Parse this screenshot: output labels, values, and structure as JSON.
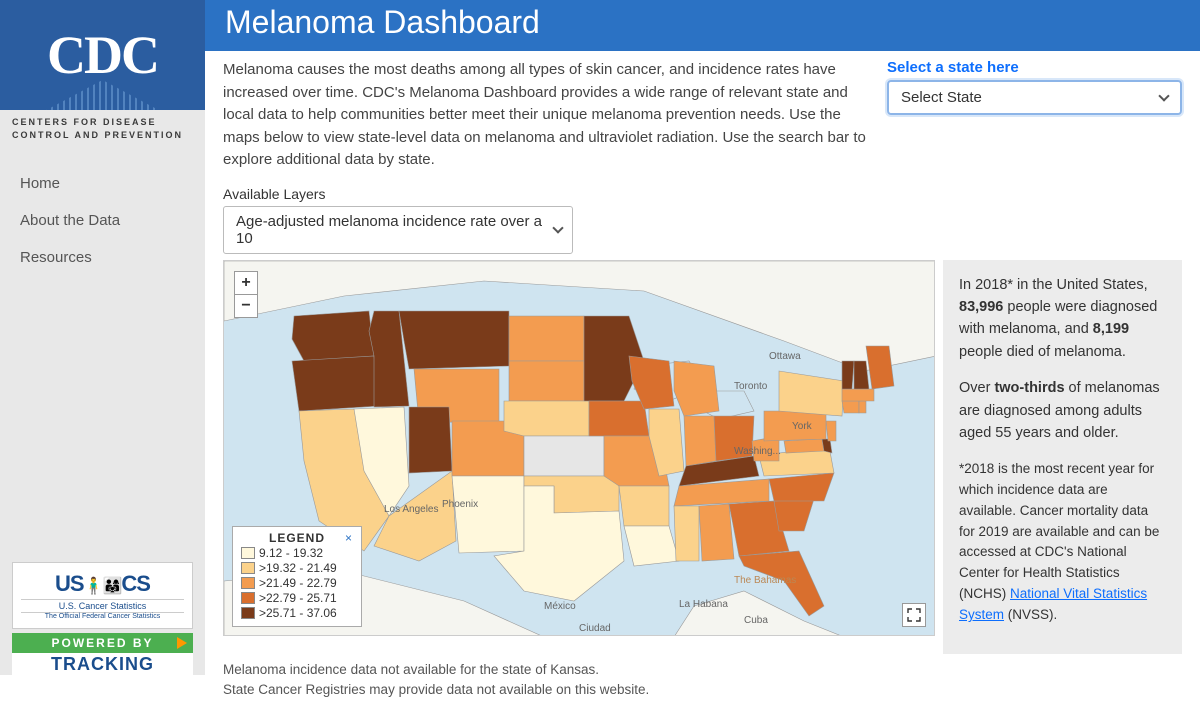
{
  "brand": {
    "abbr": "CDC",
    "line1": "CENTERS FOR DISEASE",
    "line2": "CONTROL AND PREVENTION"
  },
  "nav": {
    "home": "Home",
    "about": "About the Data",
    "resources": "Resources"
  },
  "badges": {
    "uscs_main": "US",
    "uscs_cs": "CS",
    "uscs_sub1": "U.S. Cancer Statistics",
    "uscs_sub2": "The Official Federal Cancer Statistics",
    "track_top": "POWERED BY",
    "track_bot": "TRACKING"
  },
  "title": "Melanoma Dashboard",
  "intro": "Melanoma causes the most deaths among all types of skin cancer, and incidence rates have increased over time. CDC's Melanoma Dashboard provides a wide range of relevant state and local data to help communities better meet their unique melanoma prevention needs. Use the maps below to view state-level data on melanoma and ultraviolet radiation. Use the search bar to explore additional data by state.",
  "state_select": {
    "label": "Select a state here",
    "placeholder": "Select State"
  },
  "layers": {
    "label": "Available Layers",
    "selected": "Age-adjusted melanoma incidence rate over a 10"
  },
  "legend": {
    "title": "LEGEND",
    "close": "×",
    "bins": [
      {
        "color": "#fff8dc",
        "label": "9.12 - 19.32"
      },
      {
        "color": "#fbd28b",
        "label": ">19.32 - 21.49"
      },
      {
        "color": "#f39c50",
        "label": ">21.49 - 22.79"
      },
      {
        "color": "#d96f2e",
        "label": ">22.79 - 25.71"
      },
      {
        "color": "#7a3b1a",
        "label": ">25.71 - 37.06"
      }
    ]
  },
  "palette": {
    "c0": "#fff8dc",
    "c1": "#fbd28b",
    "c2": "#f39c50",
    "c3": "#d96f2e",
    "c4": "#7a3b1a",
    "nodata": "#e6e6e6",
    "water": "#cfe4f0"
  },
  "states": {
    "WA": 4,
    "OR": 4,
    "CA": 1,
    "NV": 0,
    "ID": 4,
    "MT": 4,
    "WY": 2,
    "UT": 4,
    "AZ": 1,
    "CO": 2,
    "NM": 0,
    "ND": 2,
    "SD": 2,
    "NE": 1,
    "KS": -1,
    "OK": 1,
    "TX": 0,
    "MN": 4,
    "IA": 3,
    "MO": 2,
    "AR": 1,
    "LA": 0,
    "WI": 3,
    "IL": 1,
    "MI": 2,
    "IN": 2,
    "OH": 3,
    "KY": 4,
    "TN": 2,
    "MS": 1,
    "AL": 2,
    "GA": 3,
    "FL": 3,
    "SC": 3,
    "NC": 3,
    "VA": 1,
    "WV": 2,
    "MD": 2,
    "DE": 4,
    "NJ": 2,
    "PA": 2,
    "NY": 1,
    "CT": 2,
    "RI": 2,
    "MA": 2,
    "VT": 4,
    "NH": 4,
    "ME": 3
  },
  "cities": {
    "los_angeles": "Los Angeles",
    "phoenix": "Phoenix",
    "mexico": "México",
    "ciudad": "Ciudad",
    "la_habana": "La Habana",
    "cuba": "Cuba",
    "bahamas": "The Bahamas",
    "toronto": "Toronto",
    "ottawa": "Ottawa",
    "york": "York",
    "washing": "Washing..."
  },
  "info": {
    "p1a": "In 2018* in the United States, ",
    "p1b": "83,996",
    "p1c": " people were diagnosed with melanoma, and ",
    "p1d": "8,199",
    "p1e": " people died of melanoma.",
    "p2a": "Over ",
    "p2b": "two-thirds",
    "p2c": " of melanomas are diagnosed among adults aged 55 years and older.",
    "p3a": "*2018 is the most recent year for which incidence data are available. Cancer mortality data for 2019 are available and can be accessed at CDC's National Center for Health Statistics (NCHS) ",
    "p3link": "National Vital Statistics System",
    "p3b": " (NVSS)."
  },
  "footnotes": {
    "l1": "Melanoma incidence data not available for the state of Kansas.",
    "l2": "State Cancer Registries may provide data not available on this website."
  },
  "zoom": {
    "in": "+",
    "out": "−"
  }
}
